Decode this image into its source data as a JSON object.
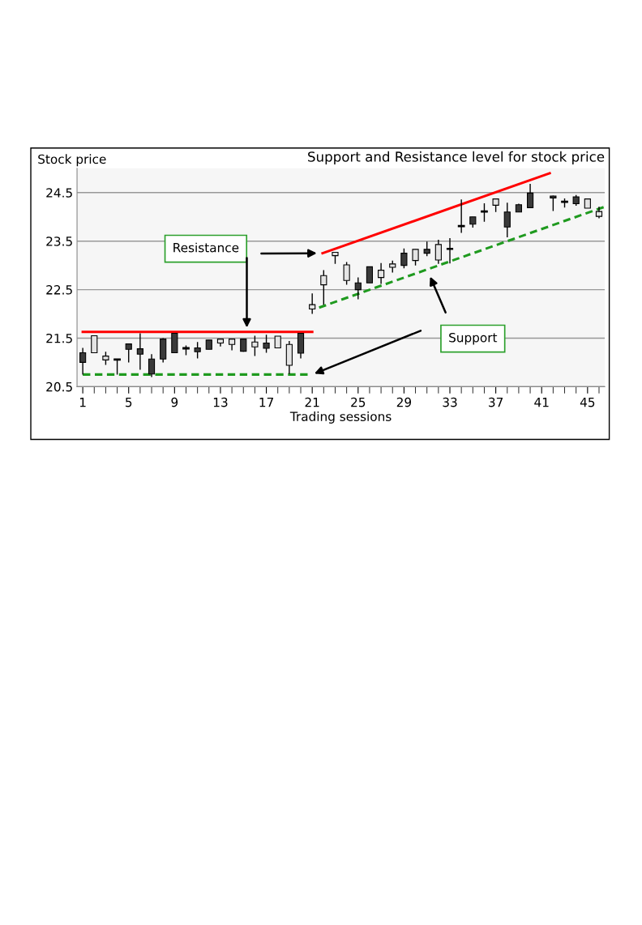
{
  "chart_data": {
    "type": "candlestick",
    "title": "Support and Resistance level for stock price",
    "xlabel": "Trading sessions",
    "ylabel": "Stock price",
    "x": [
      1,
      2,
      3,
      4,
      5,
      6,
      7,
      8,
      9,
      10,
      11,
      12,
      13,
      14,
      15,
      16,
      17,
      18,
      19,
      20,
      21,
      22,
      23,
      24,
      25,
      26,
      27,
      28,
      29,
      30,
      31,
      32,
      33,
      34,
      35,
      36,
      37,
      38,
      39,
      40,
      42,
      43,
      44,
      45,
      46
    ],
    "ohlc": [
      [
        21.2,
        21.3,
        20.75,
        21.0
      ],
      [
        21.2,
        21.55,
        21.2,
        21.55
      ],
      [
        21.05,
        21.22,
        20.95,
        21.13
      ],
      [
        21.07,
        21.07,
        20.75,
        21.05
      ],
      [
        21.38,
        21.38,
        21.0,
        21.27
      ],
      [
        21.28,
        21.6,
        20.85,
        21.17
      ],
      [
        21.07,
        21.17,
        20.7,
        20.76
      ],
      [
        21.48,
        21.5,
        21.0,
        21.07
      ],
      [
        21.6,
        21.6,
        21.2,
        21.2
      ],
      [
        21.3,
        21.35,
        21.15,
        21.28
      ],
      [
        21.3,
        21.42,
        21.08,
        21.22
      ],
      [
        21.46,
        21.46,
        21.27,
        21.27
      ],
      [
        21.4,
        21.48,
        21.33,
        21.48
      ],
      [
        21.37,
        21.48,
        21.25,
        21.48
      ],
      [
        21.48,
        21.48,
        21.22,
        21.23
      ],
      [
        21.32,
        21.55,
        21.13,
        21.42
      ],
      [
        21.4,
        21.57,
        21.2,
        21.29
      ],
      [
        21.3,
        21.54,
        21.3,
        21.54
      ],
      [
        20.94,
        21.44,
        20.76,
        21.37
      ],
      [
        21.6,
        21.6,
        21.08,
        21.19
      ],
      [
        22.1,
        22.42,
        22.0,
        22.19
      ],
      [
        22.6,
        22.9,
        22.19,
        22.79
      ],
      [
        23.2,
        23.27,
        23.03,
        23.27
      ],
      [
        22.69,
        23.07,
        22.6,
        23.01
      ],
      [
        22.64,
        22.75,
        22.3,
        22.5
      ],
      [
        22.97,
        22.97,
        22.64,
        22.64
      ],
      [
        22.75,
        23.05,
        22.62,
        22.9
      ],
      [
        22.96,
        23.1,
        22.85,
        23.03
      ],
      [
        23.25,
        23.35,
        22.94,
        23.0
      ],
      [
        23.1,
        23.33,
        23.0,
        23.33
      ],
      [
        23.33,
        23.49,
        23.19,
        23.25
      ],
      [
        23.11,
        23.53,
        23.03,
        23.43
      ],
      [
        23.35,
        23.56,
        23.04,
        23.33
      ],
      [
        23.82,
        24.36,
        23.67,
        23.8
      ],
      [
        24.0,
        24.0,
        23.78,
        23.85
      ],
      [
        24.12,
        24.28,
        23.9,
        24.1
      ],
      [
        24.24,
        24.37,
        24.1,
        24.37
      ],
      [
        24.1,
        24.29,
        23.58,
        23.79
      ],
      [
        24.25,
        24.27,
        24.1,
        24.1
      ],
      [
        24.49,
        24.68,
        24.19,
        24.19
      ],
      [
        24.43,
        24.44,
        24.12,
        24.39
      ],
      [
        24.32,
        24.38,
        24.19,
        24.3
      ],
      [
        24.41,
        24.45,
        24.23,
        24.27
      ],
      [
        24.18,
        24.37,
        24.18,
        24.37
      ],
      [
        24.01,
        24.21,
        23.97,
        24.11
      ]
    ],
    "colors": [
      "#3a3a3a",
      "#e4e4e4",
      "#e4e4e4",
      "#3a3a3a",
      "#3a3a3a",
      "#3a3a3a",
      "#3a3a3a",
      "#3a3a3a",
      "#3a3a3a",
      "#3a3a3a",
      "#3a3a3a",
      "#3a3a3a",
      "#e4e4e4",
      "#e4e4e4",
      "#3a3a3a",
      "#e4e4e4",
      "#3a3a3a",
      "#e4e4e4",
      "#e4e4e4",
      "#3a3a3a",
      "#e4e4e4",
      "#e4e4e4",
      "#e4e4e4",
      "#e4e4e4",
      "#3a3a3a",
      "#3a3a3a",
      "#e4e4e4",
      "#e4e4e4",
      "#3a3a3a",
      "#e4e4e4",
      "#3a3a3a",
      "#e4e4e4",
      "#3a3a3a",
      "#3a3a3a",
      "#3a3a3a",
      "#3a3a3a",
      "#e4e4e4",
      "#3a3a3a",
      "#3a3a3a",
      "#3a3a3a",
      "#3a3a3a",
      "#3a3a3a",
      "#3a3a3a",
      "#e4e4e4",
      "#e4e4e4"
    ],
    "series": [
      {
        "type": "line",
        "x": [
          1,
          21
        ],
        "values": [
          21.63,
          21.63
        ],
        "color": "#ff0000",
        "line_style": "solid"
      },
      {
        "type": "line",
        "x": [
          21.9,
          41.7
        ],
        "values": [
          23.25,
          24.9
        ],
        "color": "#ff0000",
        "line_style": "solid"
      },
      {
        "type": "line",
        "x": [
          1,
          20.6
        ],
        "values": [
          20.75,
          20.75
        ],
        "color": "#1f9a1f",
        "line_style": "dashed"
      },
      {
        "type": "line",
        "x": [
          21.6,
          46.4
        ],
        "values": [
          22.13,
          24.2
        ],
        "color": "#1f9a1f",
        "line_style": "dashed"
      }
    ],
    "annotations": [
      "Resistance",
      "Support"
    ],
    "xlim": [
      0.5,
      46.5
    ],
    "ylim": [
      20.5,
      25.0
    ],
    "xticks": [
      1,
      5,
      9,
      13,
      17,
      21,
      25,
      29,
      33,
      37,
      41,
      45
    ],
    "yticks": [
      20.5,
      21.5,
      22.5,
      23.5,
      24.5
    ],
    "grid": "y"
  }
}
